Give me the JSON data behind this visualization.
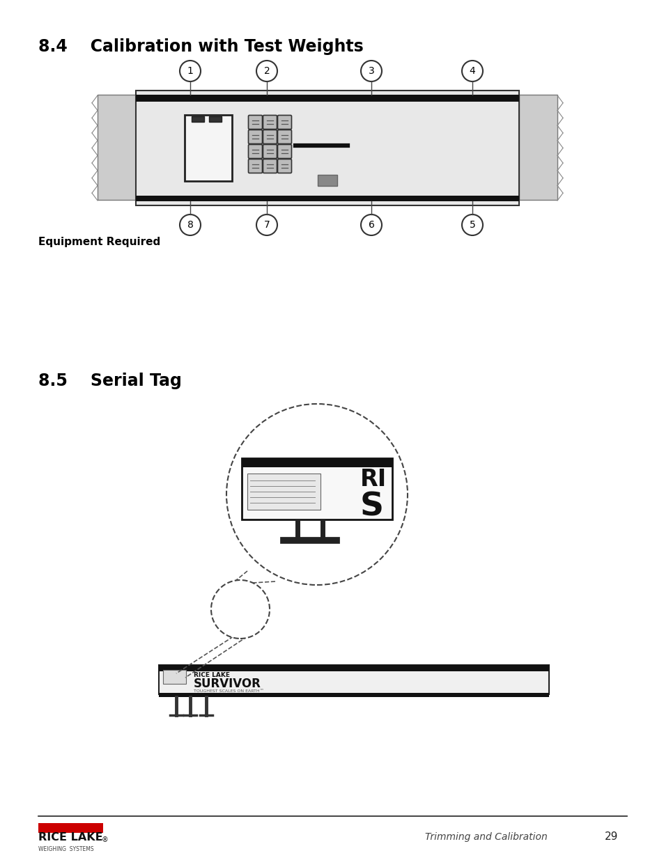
{
  "page_bg": "#ffffff",
  "section1_title": "8.4    Calibration with Test Weights",
  "section2_title": "8.5    Serial Tag",
  "equipment_required_label": "Equipment Required",
  "footer_right": "Trimming and Calibration",
  "footer_page": "29"
}
